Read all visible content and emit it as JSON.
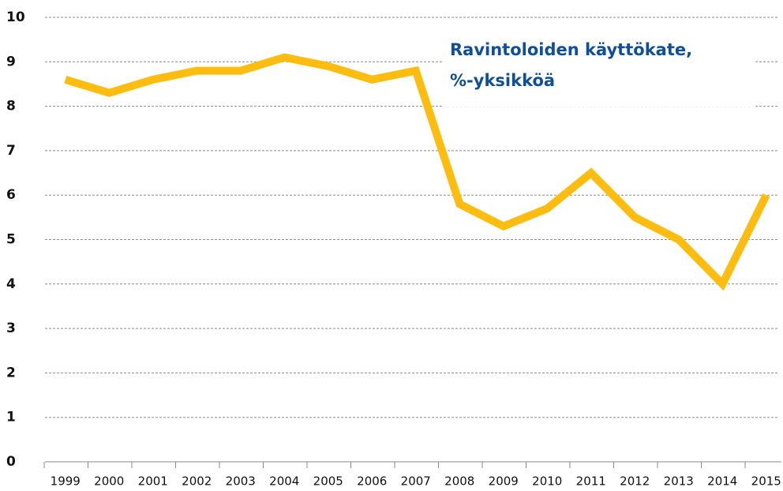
{
  "chart_data": {
    "type": "line",
    "title": [
      "Ravintoloiden käyttökate,",
      "%-yksikköä"
    ],
    "categories": [
      "1999",
      "2000",
      "2001",
      "2002",
      "2003",
      "2004",
      "2005",
      "2006",
      "2007",
      "2008",
      "2009",
      "2010",
      "2011",
      "2012",
      "2013",
      "2014",
      "2015"
    ],
    "values": [
      8.6,
      8.3,
      8.6,
      8.8,
      8.8,
      9.1,
      8.9,
      8.6,
      8.8,
      5.8,
      5.3,
      5.7,
      6.5,
      5.5,
      5.0,
      4.0,
      6.0
    ],
    "color": "#fdbd10",
    "ylim": [
      0,
      10
    ],
    "yticks": [
      0,
      1,
      2,
      3,
      4,
      5,
      6,
      7,
      8,
      9,
      10
    ],
    "grid": true
  }
}
